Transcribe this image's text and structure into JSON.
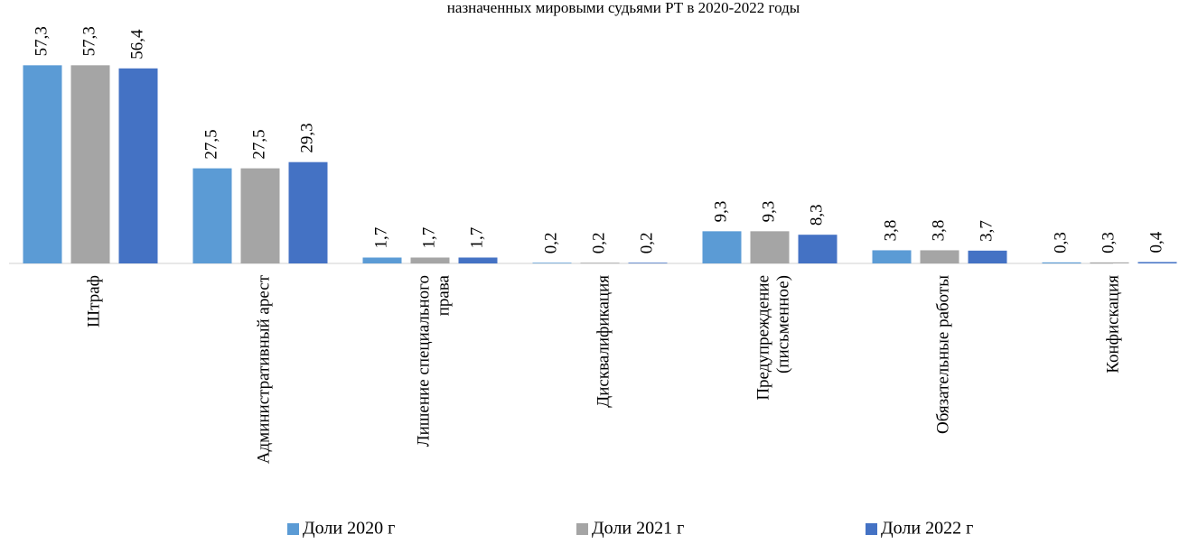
{
  "chart_data": {
    "type": "bar",
    "title": "назначенных мировыми судьями РТ в 2020-2022 годы",
    "categories": [
      "Штраф",
      "Административный арест",
      "Лишение специального\nправа",
      "Дисквалификация",
      "Предупреждение\n(письменное)",
      "Обязательные работы",
      "Конфискация"
    ],
    "series": [
      {
        "name": "Доли 2020 г",
        "color": "#5b9bd5",
        "values": [
          57.3,
          27.5,
          1.7,
          0.2,
          9.3,
          3.8,
          0.3
        ],
        "value_labels": [
          "57,3",
          "27,5",
          "1,7",
          "0,2",
          "9,3",
          "3,8",
          "0,3"
        ]
      },
      {
        "name": "Доли 2021 г",
        "color": "#a5a5a5",
        "values": [
          57.3,
          27.5,
          1.7,
          0.2,
          9.3,
          3.8,
          0.3
        ],
        "value_labels": [
          "57,3",
          "27,5",
          "1,7",
          "0,2",
          "9,3",
          "3,8",
          "0,3"
        ]
      },
      {
        "name": "Доли 2022 г",
        "color": "#4472c4",
        "values": [
          56.4,
          29.3,
          1.7,
          0.2,
          8.3,
          3.7,
          0.4
        ],
        "value_labels": [
          "56,4",
          "29,3",
          "1,7",
          "0,2",
          "8,3",
          "3,7",
          "0,4"
        ]
      }
    ],
    "ylim": [
      0,
      60
    ],
    "legend": "bottom"
  }
}
